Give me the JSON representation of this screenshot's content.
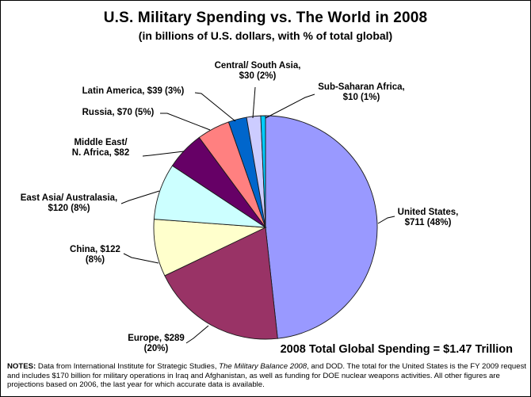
{
  "header": {
    "title": "U.S. Military Spending vs. The World in 2008",
    "subtitle": "(in billions of U.S. dollars, with % of total global)"
  },
  "footnote": {
    "prefix": "NOTES:",
    "before_italic": " Data from International Institute for Strategic Studies, ",
    "italic": "The Military Balance 2008",
    "after_italic": ", and DOD. The total for the United States is the FY 2009 request and includes $170 billion for military operations in Iraq and Afghanistan, as well as funding for DOE nuclear weapons activities. All other figures are projections based on 2006, the last year for which accurate data is available."
  },
  "chart_data": {
    "type": "pie",
    "title": "U.S. Military Spending vs. The World in 2008",
    "subtitle": "(in billions of U.S. dollars, with % of total global)",
    "units": "billions of U.S. dollars",
    "total_billions": 1473,
    "total_label": "2008 Total Global Spending = $1.47 Trillion",
    "start_angle_deg": 0,
    "direction": "clockwise",
    "legend_position": "leader-line labels around pie",
    "slices": [
      {
        "id": "united-states",
        "name": "United States",
        "value": 711,
        "pct": 48,
        "color": "#9999FF",
        "label_lines": [
          "United States,",
          "$711 (48%)"
        ]
      },
      {
        "id": "europe",
        "name": "Europe",
        "value": 289,
        "pct": 20,
        "color": "#993366",
        "label_lines": [
          "Europe, $289",
          "(20%)"
        ]
      },
      {
        "id": "china",
        "name": "China",
        "value": 122,
        "pct": 8,
        "color": "#FFFFCC",
        "label_lines": [
          "China, $122",
          "(8%)"
        ]
      },
      {
        "id": "east-asia-australasia",
        "name": "East Asia/ Australasia",
        "value": 120,
        "pct": 8,
        "color": "#CCFFFF",
        "label_lines": [
          "East Asia/ Australasia,",
          "$120 (8%)"
        ]
      },
      {
        "id": "middle-east-n-africa",
        "name": "Middle East/ N. Africa",
        "value": 82,
        "pct": null,
        "color": "#660066",
        "label_lines": [
          "Middle East/",
          "N. Africa, $82"
        ]
      },
      {
        "id": "russia",
        "name": "Russia",
        "value": 70,
        "pct": 5,
        "color": "#FF8080",
        "label_lines": [
          "Russia, $70 (5%)"
        ]
      },
      {
        "id": "latin-america",
        "name": "Latin America",
        "value": 39,
        "pct": 3,
        "color": "#0066CC",
        "label_lines": [
          "Latin America, $39 (3%)"
        ]
      },
      {
        "id": "central-south-asia",
        "name": "Central/ South Asia",
        "value": 30,
        "pct": 2,
        "color": "#CCCCFF",
        "label_lines": [
          "Central/ South Asia,",
          "$30 (2%)"
        ]
      },
      {
        "id": "sub-saharan-africa",
        "name": "Sub-Saharan Africa",
        "value": 10,
        "pct": 1,
        "color": "#00CCFF",
        "label_lines": [
          "Sub-Saharan Africa,",
          "$10 (1%)"
        ]
      }
    ]
  }
}
